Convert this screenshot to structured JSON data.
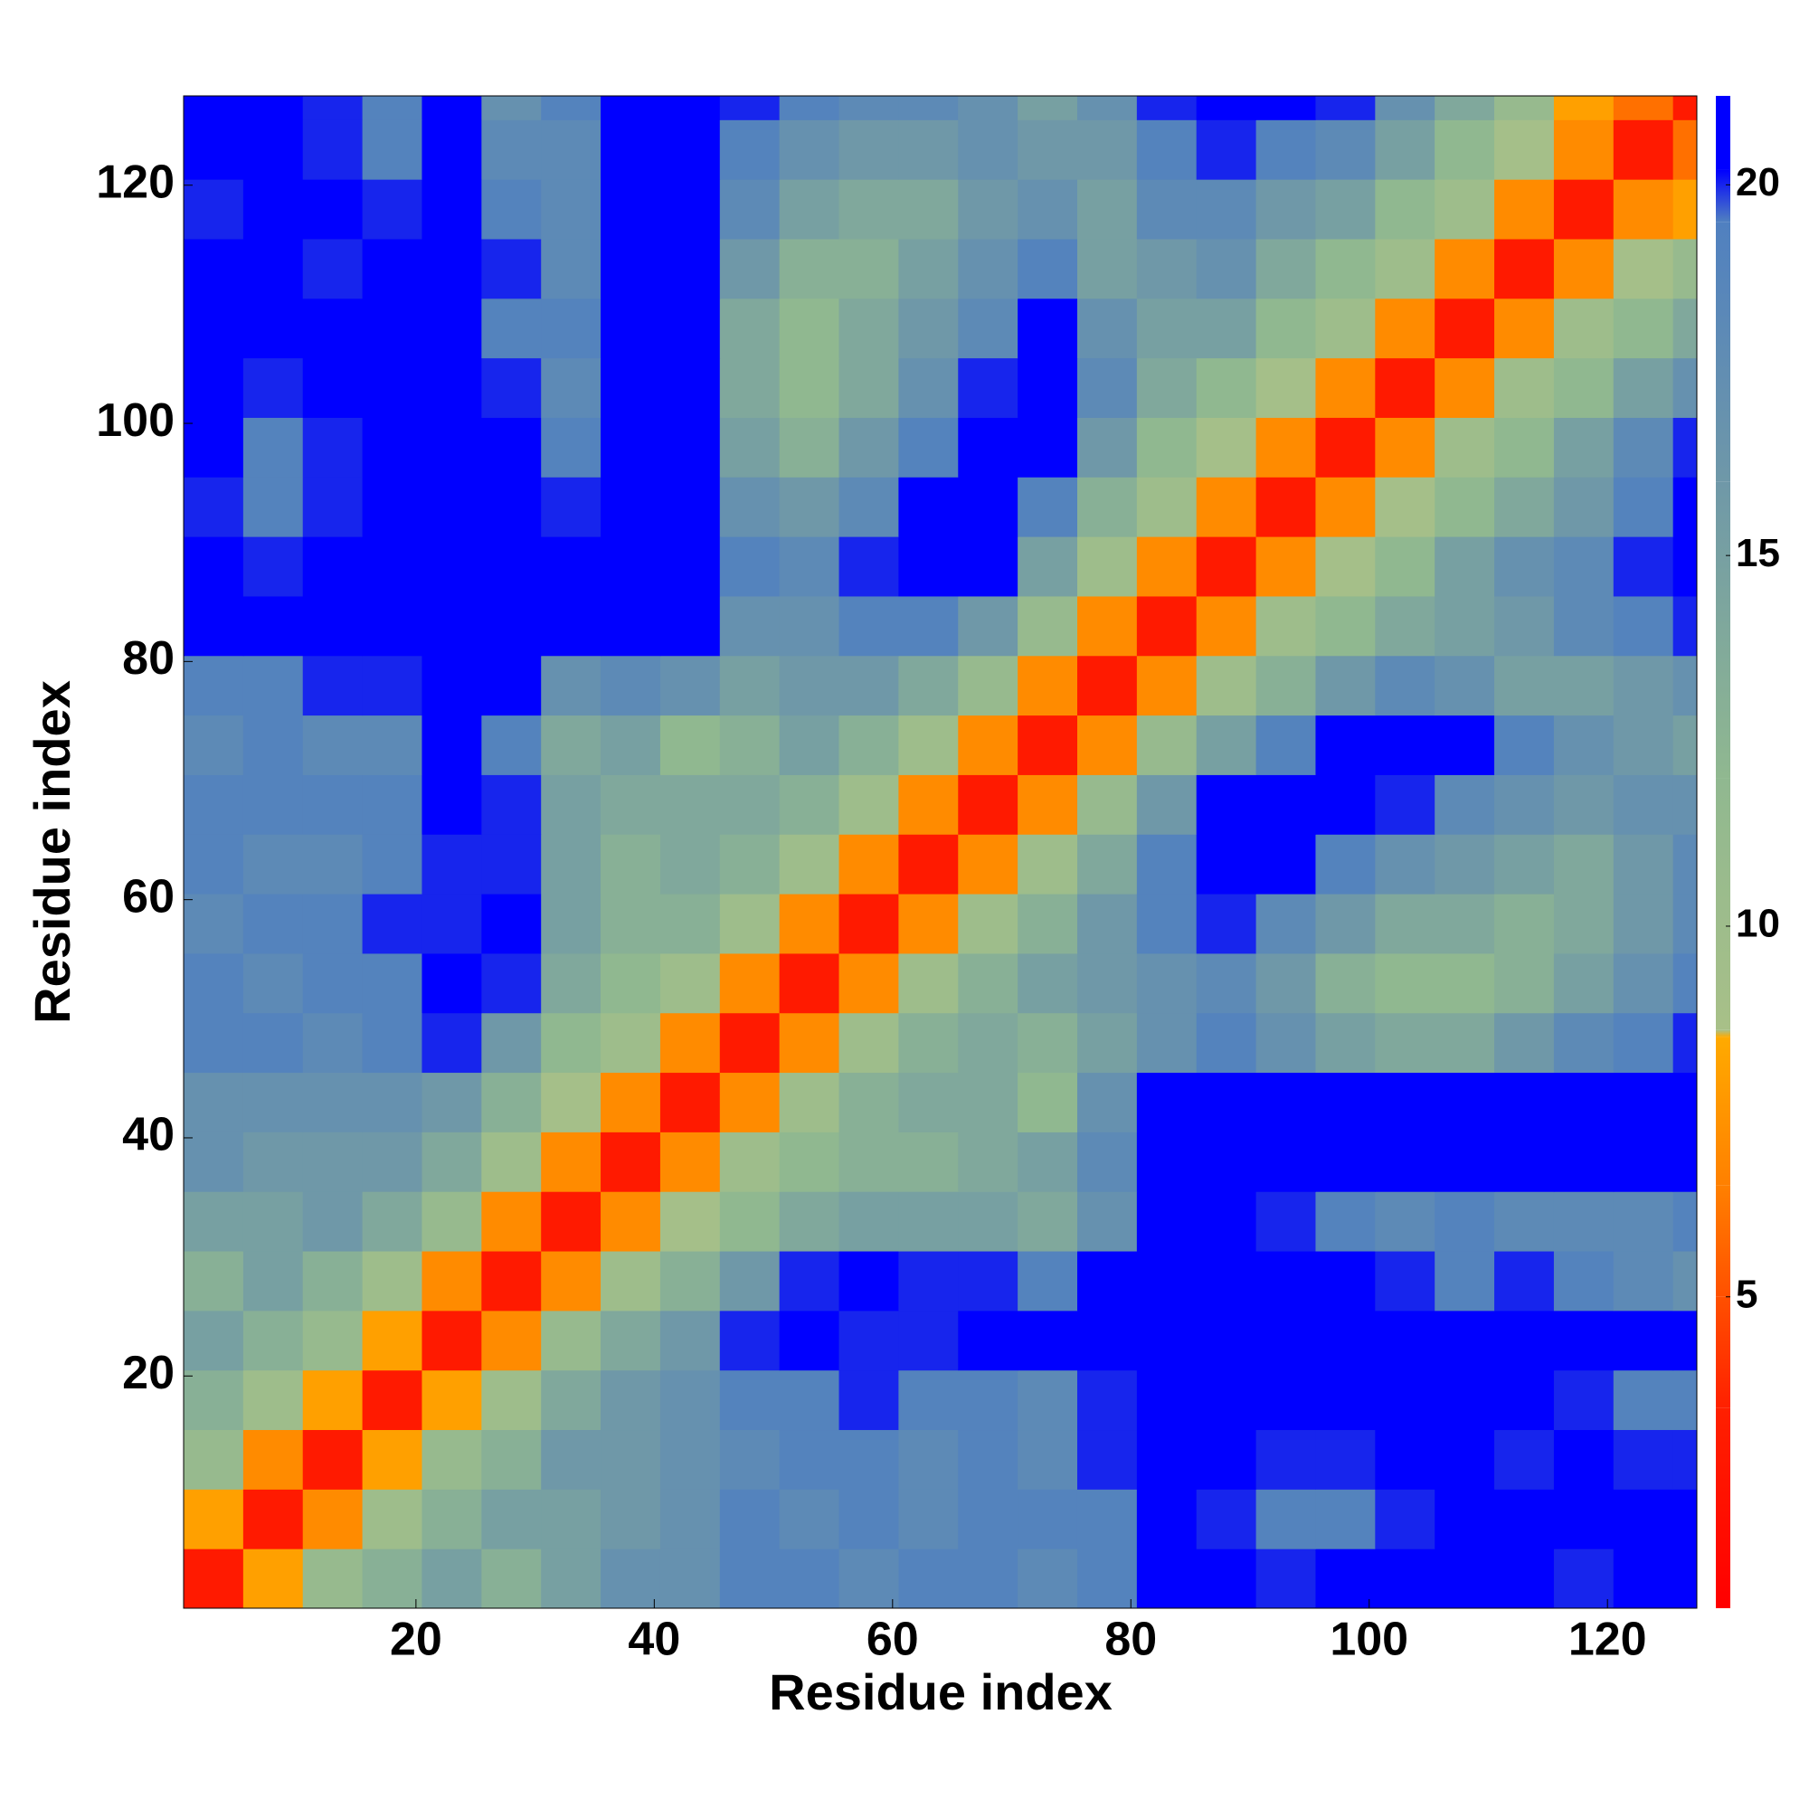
{
  "chart_data": {
    "type": "heatmap",
    "x_label": "Residue index",
    "y_label": "Residue index",
    "xlim": [
      0.5,
      127.5
    ],
    "ylim": [
      0.5,
      127.5
    ],
    "xticks": [
      20,
      40,
      60,
      80,
      100,
      120
    ],
    "yticks": [
      20,
      40,
      60,
      80,
      100,
      120
    ],
    "x_edges": [
      0.5,
      5.5,
      10.5,
      15.5,
      20.5,
      25.5,
      30.5,
      35.5,
      40.5,
      45.5,
      50.5,
      55.5,
      60.5,
      65.5,
      70.5,
      75.5,
      80.5,
      85.5,
      90.5,
      95.5,
      100.5,
      105.5,
      110.5,
      115.5,
      120.5,
      125.5,
      127.5
    ],
    "y_edges": [
      0.5,
      5.5,
      10.5,
      15.5,
      20.5,
      25.5,
      30.5,
      35.5,
      40.5,
      45.5,
      50.5,
      55.5,
      60.5,
      65.5,
      70.5,
      75.5,
      80.5,
      85.5,
      90.5,
      95.5,
      100.5,
      105.5,
      110.5,
      115.5,
      120.5,
      125.5,
      127.5
    ],
    "z": [
      [
        3,
        8,
        11,
        13,
        15,
        13,
        15,
        17,
        17,
        19,
        19,
        18,
        19,
        19,
        18,
        19,
        21,
        21,
        20,
        21,
        21,
        21,
        21,
        20,
        21,
        21
      ],
      [
        8,
        3,
        7,
        10,
        13,
        15,
        15,
        16,
        17,
        19,
        18,
        19,
        18,
        19,
        19,
        19,
        21,
        20,
        19,
        19,
        20,
        21,
        21,
        21,
        21,
        21
      ],
      [
        11,
        7,
        3,
        8,
        11,
        13,
        16,
        16,
        17,
        18,
        19,
        19,
        18,
        19,
        18,
        20,
        21,
        21,
        20,
        20,
        21,
        21,
        20,
        21,
        20,
        20
      ],
      [
        13,
        10,
        8,
        3,
        8,
        10,
        14,
        16,
        17,
        19,
        19,
        20,
        19,
        19,
        18,
        20,
        21,
        21,
        21,
        21,
        21,
        21,
        21,
        20,
        19,
        19
      ],
      [
        15,
        13,
        11,
        8,
        3,
        7,
        11,
        14,
        16,
        20,
        21,
        20,
        20,
        21,
        21,
        21,
        21,
        21,
        21,
        21,
        21,
        21,
        21,
        21,
        21,
        21
      ],
      [
        13,
        15,
        13,
        10,
        7,
        3,
        7,
        10,
        13,
        16,
        20,
        21,
        20,
        20,
        19,
        21,
        21,
        21,
        21,
        21,
        20,
        19,
        20,
        19,
        18,
        17
      ],
      [
        15,
        15,
        16,
        14,
        11,
        7,
        3,
        7,
        9,
        12,
        14,
        15,
        15,
        15,
        14,
        17,
        21,
        21,
        20,
        19,
        18,
        19,
        18,
        18,
        18,
        19
      ],
      [
        17,
        16,
        16,
        16,
        14,
        10,
        7,
        3,
        7,
        10,
        12,
        13,
        13,
        14,
        15,
        18,
        21,
        21,
        21,
        21,
        21,
        21,
        21,
        21,
        21,
        21
      ],
      [
        17,
        17,
        17,
        17,
        16,
        13,
        9,
        7,
        3,
        7,
        10,
        13,
        14,
        14,
        12,
        17,
        21,
        21,
        21,
        21,
        21,
        21,
        21,
        21,
        21,
        21
      ],
      [
        19,
        19,
        18,
        19,
        20,
        16,
        12,
        10,
        7,
        3,
        7,
        10,
        13,
        14,
        13,
        15,
        17,
        19,
        17,
        15,
        14,
        14,
        16,
        18,
        19,
        20
      ],
      [
        19,
        18,
        19,
        19,
        21,
        20,
        14,
        12,
        10,
        7,
        3,
        7,
        10,
        13,
        15,
        16,
        17,
        18,
        16,
        13,
        12,
        12,
        13,
        15,
        17,
        19
      ],
      [
        18,
        19,
        19,
        20,
        20,
        21,
        15,
        13,
        13,
        10,
        7,
        3,
        7,
        10,
        13,
        16,
        19,
        20,
        18,
        16,
        14,
        14,
        13,
        14,
        16,
        18
      ],
      [
        19,
        18,
        18,
        19,
        20,
        20,
        15,
        13,
        14,
        13,
        10,
        7,
        3,
        7,
        10,
        14,
        19,
        21,
        21,
        19,
        17,
        16,
        15,
        14,
        16,
        18
      ],
      [
        19,
        19,
        19,
        19,
        21,
        20,
        15,
        14,
        14,
        14,
        13,
        10,
        7,
        3,
        7,
        11,
        16,
        21,
        21,
        21,
        20,
        18,
        17,
        16,
        17,
        17
      ],
      [
        18,
        19,
        18,
        18,
        21,
        19,
        14,
        15,
        12,
        13,
        15,
        13,
        10,
        7,
        3,
        7,
        11,
        15,
        19,
        21,
        21,
        21,
        19,
        17,
        16,
        15
      ],
      [
        19,
        19,
        20,
        20,
        21,
        21,
        17,
        18,
        17,
        15,
        16,
        16,
        14,
        11,
        7,
        3,
        7,
        10,
        13,
        16,
        18,
        17,
        15,
        15,
        16,
        17
      ],
      [
        21,
        21,
        21,
        21,
        21,
        21,
        21,
        21,
        21,
        17,
        17,
        19,
        19,
        16,
        11,
        7,
        3,
        7,
        10,
        12,
        14,
        15,
        16,
        18,
        19,
        20
      ],
      [
        21,
        20,
        21,
        21,
        21,
        21,
        21,
        21,
        21,
        19,
        18,
        20,
        21,
        21,
        15,
        10,
        7,
        3,
        7,
        9,
        12,
        15,
        17,
        18,
        20,
        21
      ],
      [
        20,
        19,
        20,
        21,
        21,
        21,
        20,
        21,
        21,
        17,
        16,
        18,
        21,
        21,
        19,
        13,
        10,
        7,
        3,
        7,
        9,
        12,
        14,
        16,
        19,
        21
      ],
      [
        21,
        19,
        20,
        21,
        21,
        21,
        19,
        21,
        21,
        15,
        13,
        16,
        19,
        21,
        21,
        16,
        12,
        9,
        7,
        3,
        7,
        10,
        12,
        15,
        18,
        20
      ],
      [
        21,
        20,
        21,
        21,
        21,
        20,
        18,
        21,
        21,
        14,
        12,
        14,
        17,
        20,
        21,
        18,
        14,
        12,
        9,
        7,
        3,
        7,
        10,
        12,
        15,
        17
      ],
      [
        21,
        21,
        21,
        21,
        21,
        19,
        19,
        21,
        21,
        14,
        12,
        14,
        16,
        18,
        21,
        17,
        15,
        15,
        12,
        10,
        7,
        3,
        7,
        10,
        12,
        14
      ],
      [
        21,
        21,
        20,
        21,
        21,
        20,
        18,
        21,
        21,
        16,
        13,
        13,
        15,
        17,
        19,
        15,
        16,
        17,
        14,
        12,
        10,
        7,
        3,
        7,
        9,
        11
      ],
      [
        20,
        21,
        21,
        20,
        21,
        19,
        18,
        21,
        21,
        18,
        15,
        14,
        14,
        16,
        17,
        15,
        18,
        18,
        16,
        15,
        12,
        10,
        7,
        3,
        7,
        8
      ],
      [
        21,
        21,
        20,
        19,
        21,
        18,
        18,
        21,
        21,
        19,
        17,
        16,
        16,
        17,
        16,
        16,
        19,
        20,
        19,
        18,
        15,
        12,
        9,
        7,
        3,
        6
      ],
      [
        21,
        21,
        20,
        19,
        21,
        17,
        19,
        21,
        21,
        20,
        19,
        18,
        18,
        17,
        15,
        17,
        20,
        21,
        21,
        20,
        17,
        14,
        11,
        8,
        6,
        3
      ]
    ],
    "clim": [
      0.8,
      21.2
    ],
    "cticks": [
      5,
      10,
      15,
      20
    ],
    "colorscale": [
      [
        0.8,
        "#ff0000"
      ],
      [
        3.5,
        "#ff2000"
      ],
      [
        5,
        "#ff5000"
      ],
      [
        6.5,
        "#ff8000"
      ],
      [
        8.5,
        "#ffaa00"
      ],
      [
        8.6,
        "#a8c088"
      ],
      [
        12,
        "#90b890"
      ],
      [
        16,
        "#6f98a8"
      ],
      [
        19.5,
        "#5080c0"
      ],
      [
        20.2,
        "#0000ff"
      ],
      [
        21.2,
        "#0000ff"
      ]
    ]
  }
}
